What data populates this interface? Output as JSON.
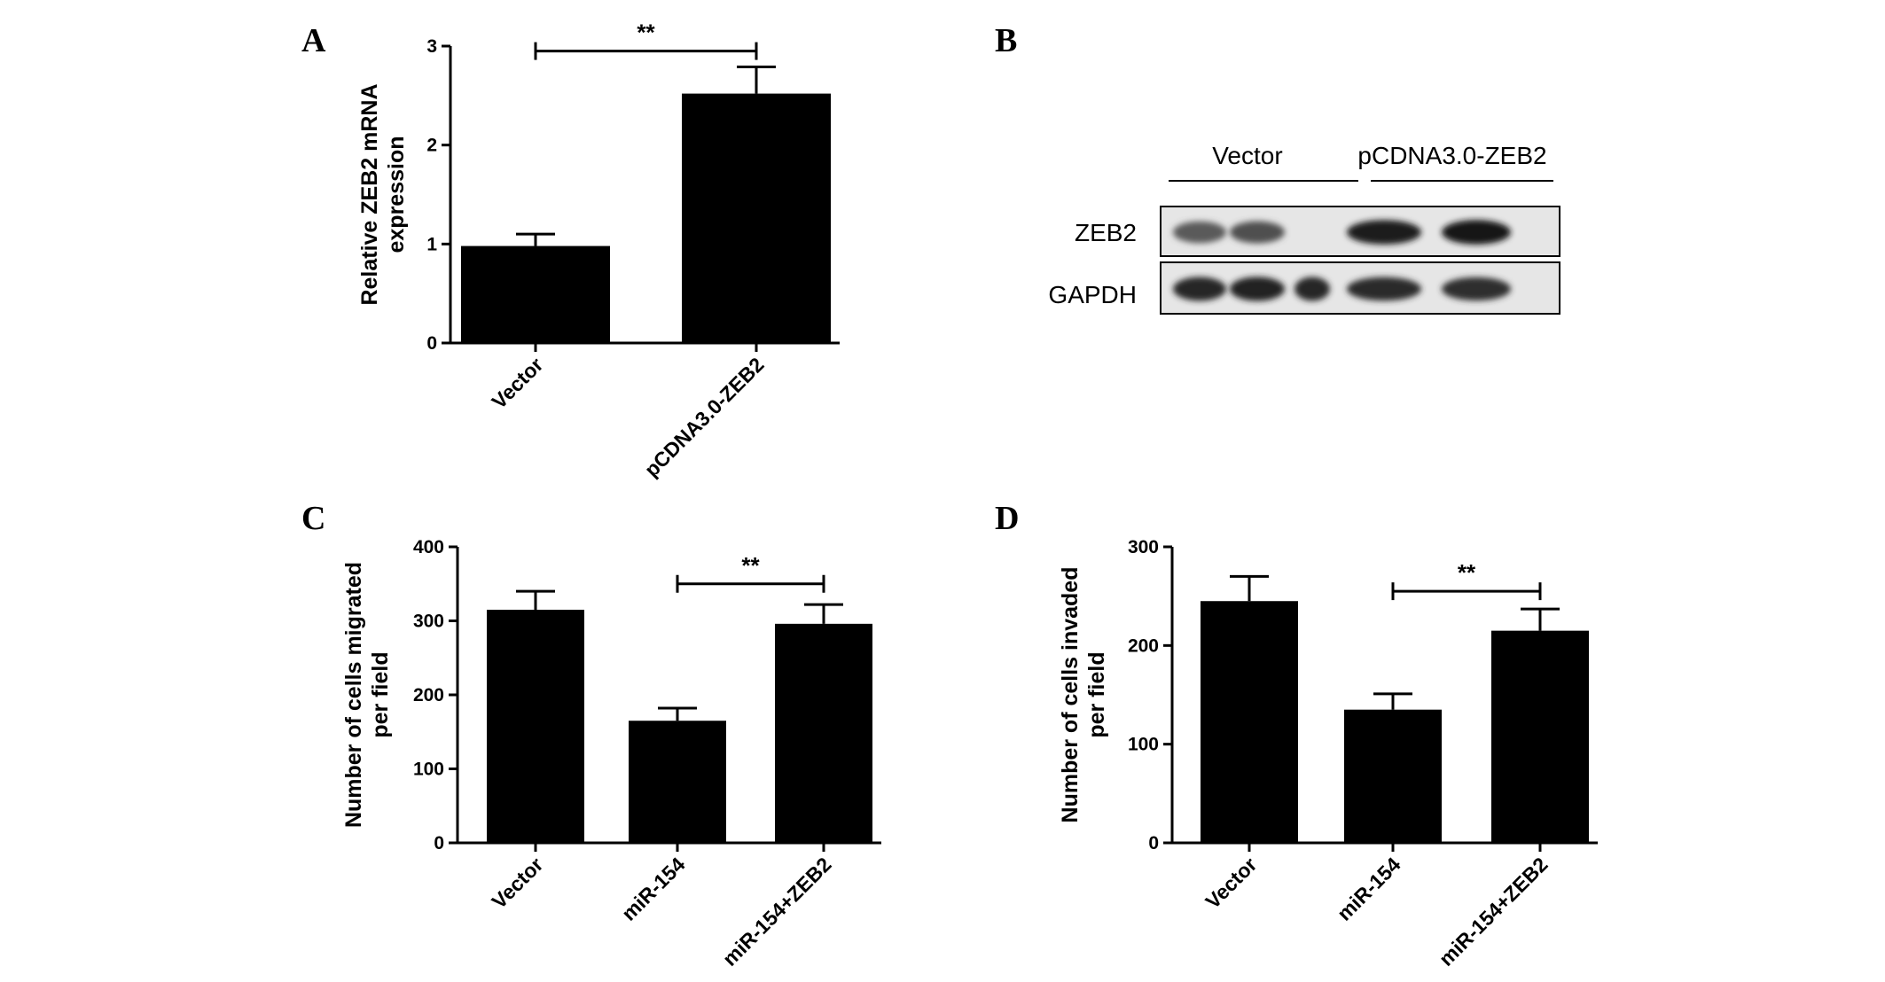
{
  "panels": [
    "A",
    "B",
    "C",
    "D"
  ],
  "chart_data": [
    {
      "panel": "A",
      "type": "bar",
      "categories": [
        "Vector",
        "pCDNA3.0-ZEB2"
      ],
      "values": [
        0.98,
        2.52
      ],
      "errors": [
        0.12,
        0.27
      ],
      "ylabel": [
        "Relative ZEB2 mRNA",
        "expression"
      ],
      "ylim": [
        0,
        3
      ],
      "yticks": [
        0,
        1,
        2,
        3
      ],
      "significance": [
        {
          "from": 0,
          "to": 1,
          "label": "**",
          "y": 2.95
        }
      ]
    },
    {
      "panel": "C",
      "type": "bar",
      "categories": [
        "Vector",
        "miR-154",
        "miR-154+ZEB2"
      ],
      "values": [
        315,
        165,
        296
      ],
      "errors": [
        25,
        17,
        26
      ],
      "ylabel": [
        "Number of cells migrated",
        "per field"
      ],
      "ylim": [
        0,
        400
      ],
      "yticks": [
        0,
        100,
        200,
        300,
        400
      ],
      "significance": [
        {
          "from": 1,
          "to": 2,
          "label": "**",
          "y": 350
        }
      ]
    },
    {
      "panel": "D",
      "type": "bar",
      "categories": [
        "Vector",
        "miR-154",
        "miR-154+ZEB2"
      ],
      "values": [
        245,
        135,
        215
      ],
      "errors": [
        25,
        16,
        22
      ],
      "ylabel": [
        "Number of cells invaded",
        "per field"
      ],
      "ylim": [
        0,
        300
      ],
      "yticks": [
        0,
        100,
        200,
        300
      ],
      "significance": [
        {
          "from": 1,
          "to": 2,
          "label": "**",
          "y": 255
        }
      ]
    }
  ],
  "blot": {
    "groups": [
      "Vector",
      "pCDNA3.0-ZEB2"
    ],
    "rows": [
      {
        "label": "ZEB2",
        "lane_intensity": [
          0.65,
          0.7,
          0.0,
          0.95,
          0.97
        ]
      },
      {
        "label": "GAPDH",
        "lane_intensity": [
          0.9,
          0.92,
          0.9,
          0.88,
          0.86
        ]
      }
    ]
  }
}
